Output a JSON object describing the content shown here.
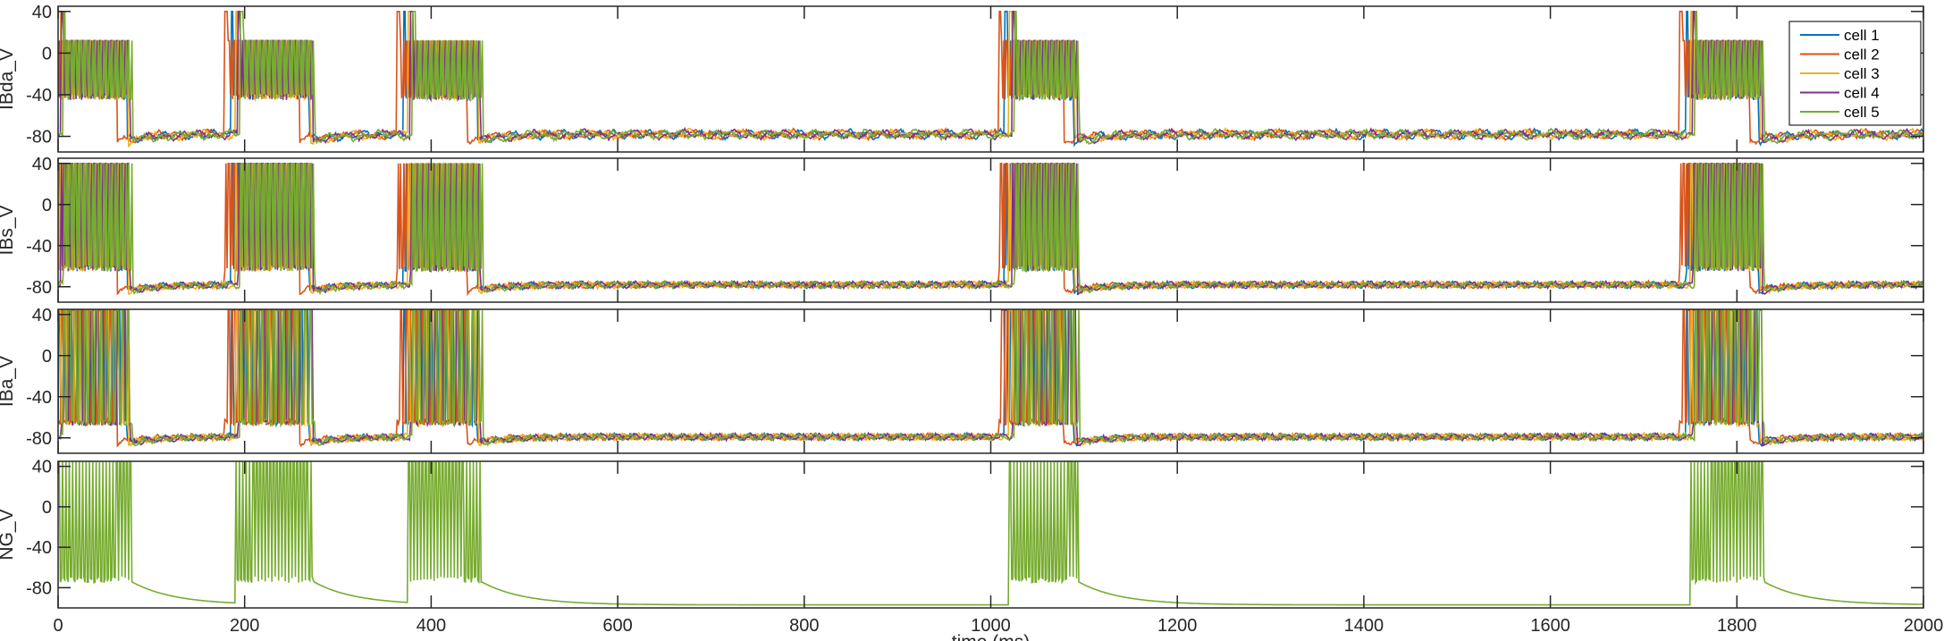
{
  "colors": {
    "cell 1": "#0072BD",
    "cell 2": "#D95319",
    "cell 3": "#EDB120",
    "cell 4": "#7E2F8E",
    "cell 5": "#77AC30"
  },
  "chart_data": {
    "type": "line",
    "xlabel": "time (ms)",
    "xlim": [
      0,
      2000
    ],
    "xticks": [
      "0",
      "200",
      "400",
      "600",
      "800",
      "1000",
      "1200",
      "1400",
      "1600",
      "1800",
      "2000"
    ],
    "legend": {
      "placement": "top-right of first panel",
      "entries": [
        "cell 1",
        "cell 2",
        "cell 3",
        "cell 4",
        "cell 5"
      ]
    },
    "burst_windows_ms": [
      [
        0,
        75
      ],
      [
        190,
        270
      ],
      [
        375,
        450
      ],
      [
        1020,
        1090
      ],
      [
        1750,
        1825
      ]
    ],
    "panels": [
      {
        "ylabel": "IBda_V",
        "ylim": [
          -95,
          45
        ],
        "yticks": [
          "40",
          "0",
          "-40",
          "-80"
        ],
        "series_names": [
          "cell 1",
          "cell 2",
          "cell 3",
          "cell 4",
          "cell 5"
        ],
        "burst_range_mV": [
          -45,
          12
        ],
        "resting_mV": -78,
        "spike_peak_mV": 40
      },
      {
        "ylabel": "IBs_V",
        "ylim": [
          -95,
          45
        ],
        "yticks": [
          "40",
          "0",
          "-40",
          "-80"
        ],
        "series_names": [
          "cell 1",
          "cell 2",
          "cell 3",
          "cell 4",
          "cell 5"
        ],
        "burst_range_mV": [
          -65,
          40
        ],
        "resting_mV": -78,
        "spike_peak_mV": 42
      },
      {
        "ylabel": "IBa_V",
        "ylim": [
          -95,
          45
        ],
        "yticks": [
          "40",
          "0",
          "-40",
          "-80"
        ],
        "series_names": [
          "cell 1",
          "cell 2",
          "cell 3",
          "cell 4",
          "cell 5"
        ],
        "burst_range_mV": [
          -68,
          44
        ],
        "resting_mV": -79,
        "spike_peak_mV": 44
      },
      {
        "ylabel": "NG_V",
        "ylim": [
          -100,
          45
        ],
        "yticks": [
          "40",
          "0",
          "-40",
          "-80"
        ],
        "series_names": [
          "cell 5"
        ],
        "burst_range_mV": [
          -75,
          45
        ],
        "resting_mV": -97,
        "spike_peak_mV": 45
      }
    ]
  }
}
